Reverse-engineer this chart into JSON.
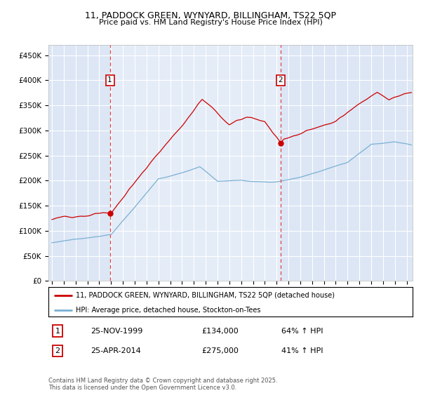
{
  "title_line1": "11, PADDOCK GREEN, WYNYARD, BILLINGHAM, TS22 5QP",
  "title_line2": "Price paid vs. HM Land Registry's House Price Index (HPI)",
  "bg_color": "#dce6f5",
  "plot_bg_color": "#dce6f5",
  "ylabel_ticks": [
    "£0",
    "£50K",
    "£100K",
    "£150K",
    "£200K",
    "£250K",
    "£300K",
    "£350K",
    "£400K",
    "£450K"
  ],
  "ytick_vals": [
    0,
    50000,
    100000,
    150000,
    200000,
    250000,
    300000,
    350000,
    400000,
    450000
  ],
  "ylim": [
    0,
    470000
  ],
  "xlim_start": 1994.7,
  "xlim_end": 2025.5,
  "purchase1_date": 1999.9,
  "purchase1_price": 134000,
  "purchase1_label": "1",
  "purchase2_date": 2014.32,
  "purchase2_price": 275000,
  "purchase2_label": "2",
  "red_color": "#cc0000",
  "blue_color": "#7ab0d4",
  "legend_label1": "11, PADDOCK GREEN, WYNYARD, BILLINGHAM, TS22 5QP (detached house)",
  "legend_label2": "HPI: Average price, detached house, Stockton-on-Tees",
  "sale1_date_str": "25-NOV-1999",
  "sale1_price_str": "£134,000",
  "sale1_hpi_str": "64% ↑ HPI",
  "sale2_date_str": "25-APR-2014",
  "sale2_price_str": "£275,000",
  "sale2_hpi_str": "41% ↑ HPI",
  "footer_text": "Contains HM Land Registry data © Crown copyright and database right 2025.\nThis data is licensed under the Open Government Licence v3.0.",
  "grid_color": "#ffffff",
  "dashed_line_color": "#dd4444"
}
